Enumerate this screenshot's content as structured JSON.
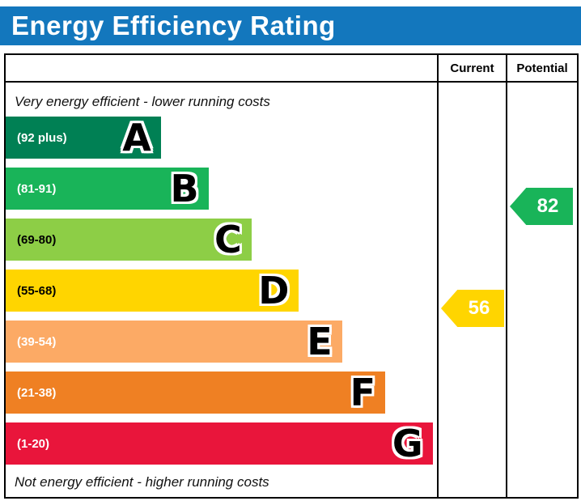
{
  "header": {
    "title": "Energy Efficiency Rating"
  },
  "table": {
    "columns": [
      "Current",
      "Potential"
    ]
  },
  "notes": {
    "top": "Very energy efficient - lower running costs",
    "bottom": "Not energy efficient - higher running costs"
  },
  "chart_data": {
    "type": "bar",
    "subtype": "epc-energy-efficiency-rating",
    "title": "Energy Efficiency Rating",
    "columns": [
      "Current",
      "Potential"
    ],
    "bands": [
      {
        "letter": "A",
        "range": "(92 plus)",
        "color": "#008054",
        "text_color": "#ffffff",
        "width_pct": 36
      },
      {
        "letter": "B",
        "range": "(81-91)",
        "color": "#19b459",
        "text_color": "#ffffff",
        "width_pct": 47
      },
      {
        "letter": "C",
        "range": "(69-80)",
        "color": "#8dce46",
        "text_color": "#000000",
        "width_pct": 57
      },
      {
        "letter": "D",
        "range": "(55-68)",
        "color": "#ffd500",
        "text_color": "#000000",
        "width_pct": 68
      },
      {
        "letter": "E",
        "range": "(39-54)",
        "color": "#fcaa65",
        "text_color": "#ffffff",
        "width_pct": 78
      },
      {
        "letter": "F",
        "range": "(21-38)",
        "color": "#ef8023",
        "text_color": "#ffffff",
        "width_pct": 88
      },
      {
        "letter": "G",
        "range": "(1-20)",
        "color": "#e9153b",
        "text_color": "#ffffff",
        "width_pct": 99
      }
    ],
    "markers": {
      "current": {
        "value": 56,
        "band": "D",
        "color": "#ffd500"
      },
      "potential": {
        "value": 82,
        "band": "B",
        "color": "#19b459"
      }
    }
  }
}
